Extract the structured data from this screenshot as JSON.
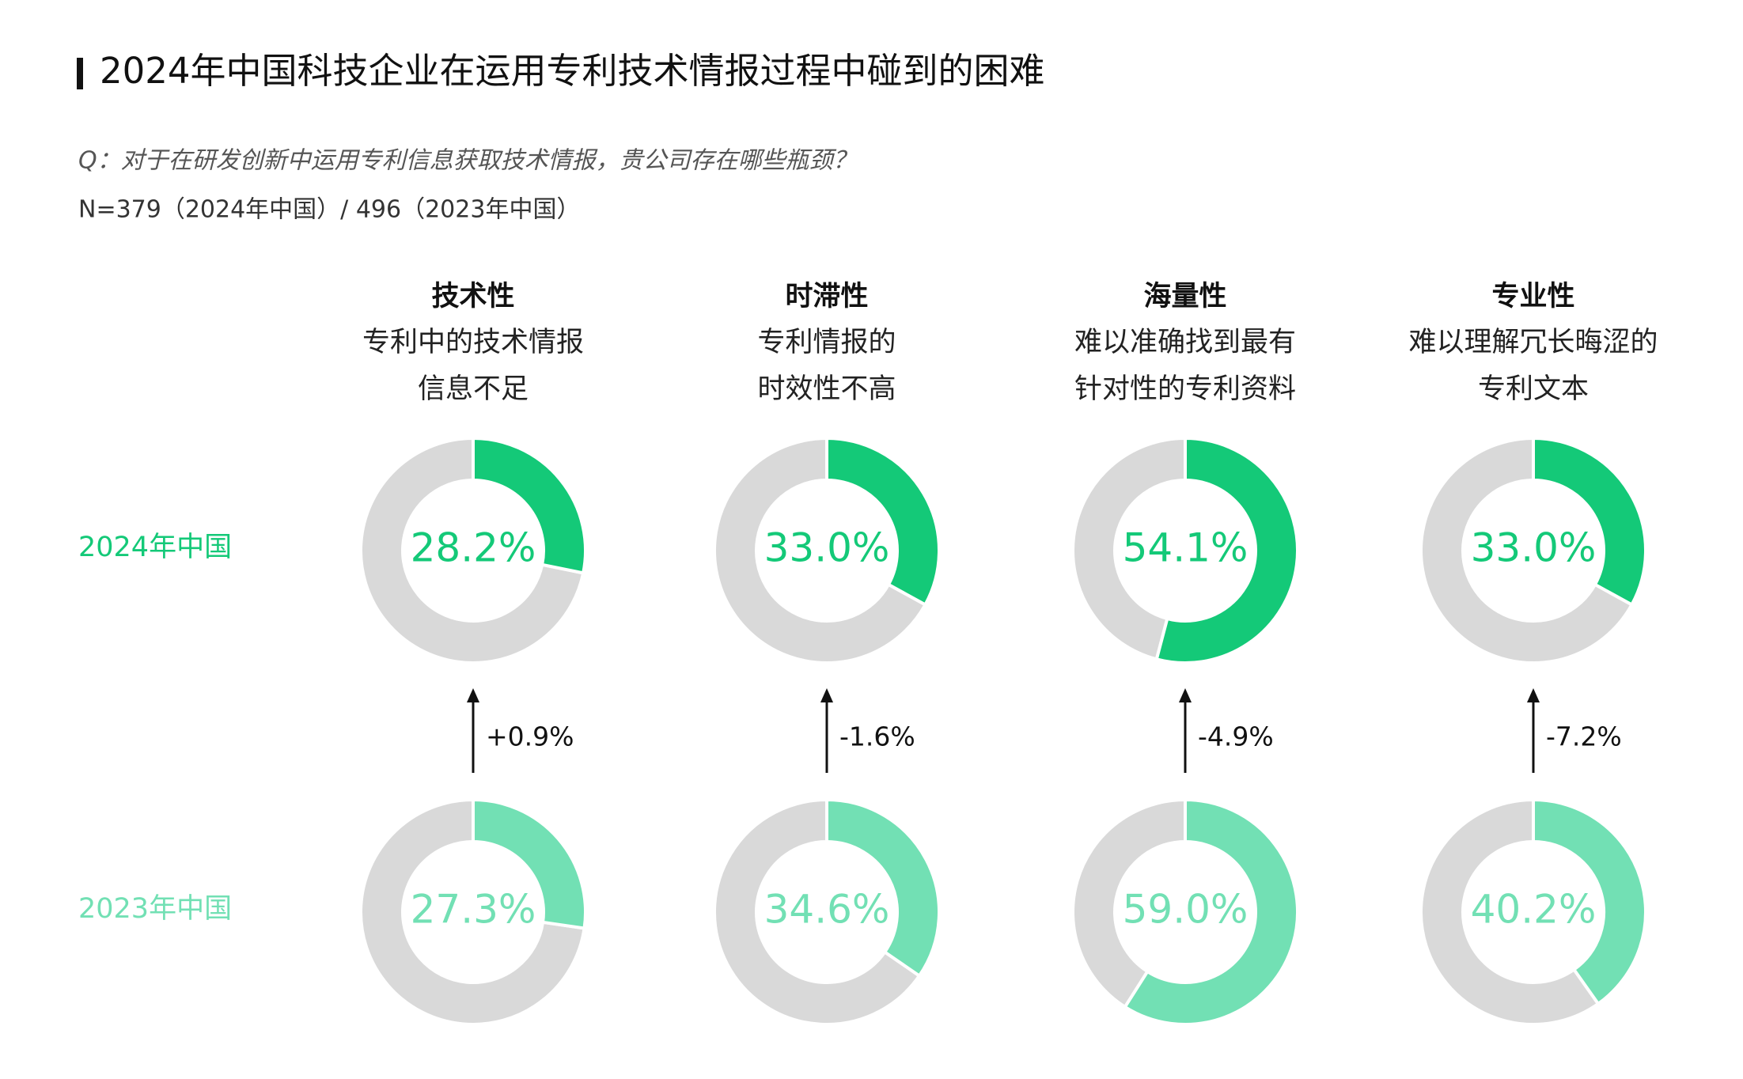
{
  "chart_data": {
    "type": "donut",
    "title": "2024年中国科技企业在运用专利技术情报过程中碰到的困难",
    "subtitle": "Q：对于在研发创新中运用专利信息获取技术情报，贵公司存在哪些瓶颈？",
    "note": "N=379（2024年中国）/ 496（2023年中国）",
    "categories": [
      "技术性",
      "时滞性",
      "海量性",
      "专业性"
    ],
    "category_descriptions": [
      [
        "专利中的技术情报",
        "信息不足"
      ],
      [
        "专利情报的",
        "时效性不高"
      ],
      [
        "难以准确找到最有",
        "针对性的专利资料"
      ],
      [
        "难以理解冗长晦涩的",
        "专利文本"
      ]
    ],
    "series": [
      {
        "name": "2024年中国",
        "color": "#14c978",
        "values": [
          28.2,
          33.0,
          54.1,
          33.0
        ],
        "value_labels": [
          "28.2%",
          "33.0%",
          "54.1%",
          "33.0%"
        ]
      },
      {
        "name": "2023年中国",
        "color": "#72e0b4",
        "values": [
          27.3,
          34.6,
          59.0,
          40.2
        ],
        "value_labels": [
          "27.3%",
          "34.6%",
          "59.0%",
          "40.2%"
        ]
      }
    ],
    "changes": {
      "values": [
        0.9,
        -1.6,
        -4.9,
        -7.2
      ],
      "value_labels": [
        "+0.9%",
        "-1.6%",
        "-4.9%",
        "-7.2%"
      ]
    },
    "remainder_color": "#d9d9d9"
  }
}
